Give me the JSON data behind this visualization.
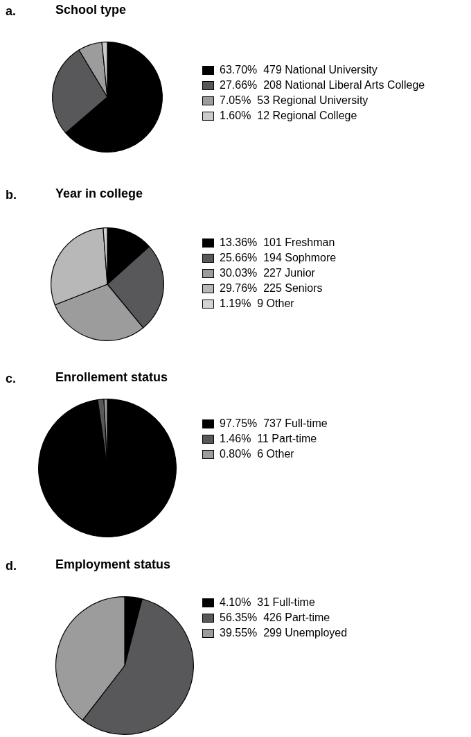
{
  "chart_data": [
    {
      "type": "pie",
      "title": "School type",
      "annotations": [
        "a."
      ],
      "legend": "right",
      "categories": [
        "63.70%  479 National University",
        "27.66%  208 National Liberal Arts College",
        "7.05%  53 Regional University",
        "1.60%  12 Regional College"
      ],
      "values": [
        479,
        208,
        53,
        12
      ],
      "colors": [
        "#000000",
        "#58585a",
        "#9c9c9c",
        "#cacaca"
      ]
    },
    {
      "type": "pie",
      "title": "Year in college",
      "annotations": [
        "b."
      ],
      "legend": "right",
      "categories": [
        "13.36%  101 Freshman",
        "25.66%  194 Sophmore",
        "30.03%  227 Junior",
        "29.76%  225 Seniors",
        "1.19%  9 Other"
      ],
      "values": [
        101,
        194,
        227,
        225,
        9
      ],
      "colors": [
        "#000000",
        "#58585a",
        "#9c9c9c",
        "#b8b8b8",
        "#d4d4d4"
      ]
    },
    {
      "type": "pie",
      "title": "Enrollement status",
      "annotations": [
        "c."
      ],
      "legend": "right",
      "categories": [
        "97.75%  737 Full-time",
        "1.46%  11 Part-time",
        "0.80%  6 Other"
      ],
      "values": [
        737,
        11,
        6
      ],
      "colors": [
        "#000000",
        "#58585a",
        "#9c9c9c"
      ]
    },
    {
      "type": "pie",
      "title": "Employment status",
      "annotations": [
        "d."
      ],
      "legend": "right",
      "categories": [
        "4.10%  31 Full-time",
        "56.35%  426 Part-time",
        "39.55%  299 Unemployed"
      ],
      "values": [
        31,
        426,
        299
      ],
      "colors": [
        "#000000",
        "#58585a",
        "#9c9c9c"
      ]
    }
  ]
}
